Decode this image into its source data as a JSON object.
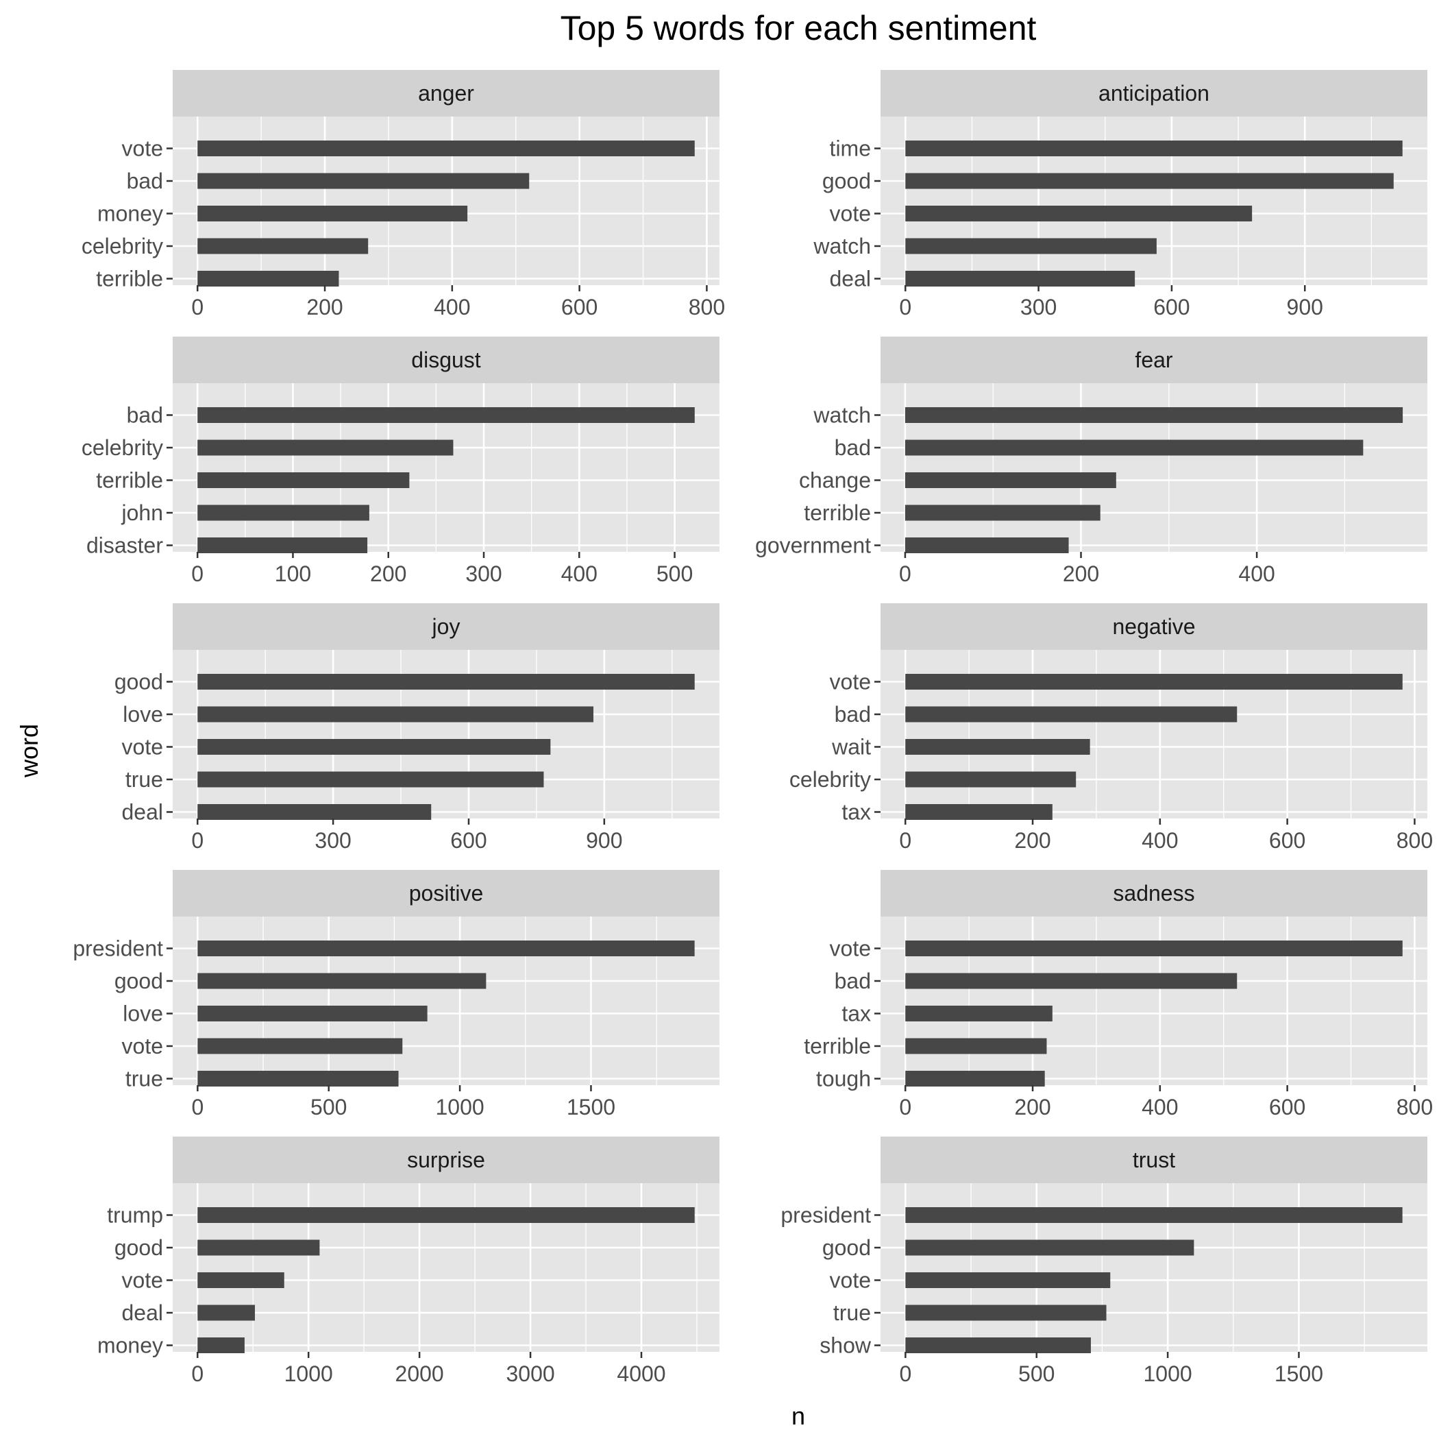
{
  "chart_data": {
    "type": "bar",
    "orientation": "horizontal",
    "layout": "facet-grid-5x2",
    "title": "Top 5 words for each sentiment",
    "xlabel": "n",
    "ylabel": "word",
    "grid": true,
    "bar_color": "#474747",
    "panel_background": "#e5e5e5",
    "strip_background": "#d2d2d2",
    "gridline_color": "#ffffff",
    "facets": [
      {
        "name": "anger",
        "words": [
          "vote",
          "bad",
          "money",
          "celebrity",
          "terrible"
        ],
        "values": [
          781,
          521,
          424,
          268,
          222
        ],
        "xlim": [
          -39,
          820
        ],
        "ticks": [
          0,
          200,
          400,
          600,
          800
        ],
        "tick_labels": [
          "0",
          "200",
          "400",
          "600",
          "800"
        ]
      },
      {
        "name": "anticipation",
        "words": [
          "time",
          "good",
          "vote",
          "watch",
          "deal"
        ],
        "values": [
          1120,
          1100,
          781,
          566,
          517
        ],
        "xlim": [
          -56,
          1176
        ],
        "ticks": [
          0,
          300,
          600,
          900
        ],
        "tick_labels": [
          "0",
          "300",
          "600",
          "900"
        ]
      },
      {
        "name": "disgust",
        "words": [
          "bad",
          "celebrity",
          "terrible",
          "john",
          "disaster"
        ],
        "values": [
          521,
          268,
          222,
          180,
          178
        ],
        "xlim": [
          -26,
          547
        ],
        "ticks": [
          0,
          100,
          200,
          300,
          400,
          500
        ],
        "tick_labels": [
          "0",
          "100",
          "200",
          "300",
          "400",
          "500"
        ]
      },
      {
        "name": "fear",
        "words": [
          "watch",
          "bad",
          "change",
          "terrible",
          "government"
        ],
        "values": [
          566,
          521,
          240,
          222,
          186
        ],
        "xlim": [
          -28,
          594
        ],
        "ticks": [
          0,
          200,
          400
        ],
        "tick_labels": [
          "0",
          "200",
          "400"
        ]
      },
      {
        "name": "joy",
        "words": [
          "good",
          "love",
          "vote",
          "true",
          "deal"
        ],
        "values": [
          1100,
          876,
          781,
          766,
          517
        ],
        "xlim": [
          -55,
          1155
        ],
        "ticks": [
          0,
          300,
          600,
          900
        ],
        "tick_labels": [
          "0",
          "300",
          "600",
          "900"
        ]
      },
      {
        "name": "negative",
        "words": [
          "vote",
          "bad",
          "wait",
          "celebrity",
          "tax"
        ],
        "values": [
          781,
          521,
          290,
          268,
          231
        ],
        "xlim": [
          -39,
          820
        ],
        "ticks": [
          0,
          200,
          400,
          600,
          800
        ],
        "tick_labels": [
          "0",
          "200",
          "400",
          "600",
          "800"
        ]
      },
      {
        "name": "positive",
        "words": [
          "president",
          "good",
          "love",
          "vote",
          "true"
        ],
        "values": [
          1895,
          1100,
          876,
          781,
          766
        ],
        "xlim": [
          -95,
          1990
        ],
        "ticks": [
          0,
          500,
          1000,
          1500
        ],
        "tick_labels": [
          "0",
          "500",
          "1000",
          "1500"
        ]
      },
      {
        "name": "sadness",
        "words": [
          "vote",
          "bad",
          "tax",
          "terrible",
          "tough"
        ],
        "values": [
          781,
          521,
          231,
          222,
          219
        ],
        "xlim": [
          -39,
          820
        ],
        "ticks": [
          0,
          200,
          400,
          600,
          800
        ],
        "tick_labels": [
          "0",
          "200",
          "400",
          "600",
          "800"
        ]
      },
      {
        "name": "surprise",
        "words": [
          "trump",
          "good",
          "vote",
          "deal",
          "money"
        ],
        "values": [
          4480,
          1100,
          781,
          517,
          424
        ],
        "xlim": [
          -224,
          4704
        ],
        "ticks": [
          0,
          1000,
          2000,
          3000,
          4000
        ],
        "tick_labels": [
          "0",
          "1000",
          "2000",
          "3000",
          "4000"
        ]
      },
      {
        "name": "trust",
        "words": [
          "president",
          "good",
          "vote",
          "true",
          "show"
        ],
        "values": [
          1895,
          1100,
          781,
          766,
          707
        ],
        "xlim": [
          -95,
          1990
        ],
        "ticks": [
          0,
          500,
          1000,
          1500
        ],
        "tick_labels": [
          "0",
          "500",
          "1000",
          "1500"
        ]
      }
    ]
  }
}
